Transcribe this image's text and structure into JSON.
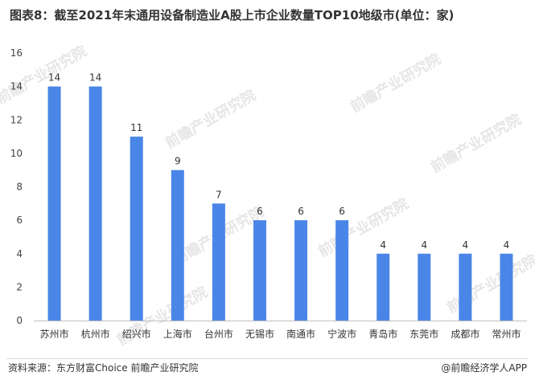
{
  "title": "图表8：截至2021年末通用设备制造业A股上市企业数量TOP10地级市(单位：家)",
  "footer": {
    "source": "资料来源：东方财富Choice 前瞻产业研究院",
    "brand": "@前瞻经济学人APP"
  },
  "watermark": {
    "text": "前瞻产业研究院"
  },
  "colors": {
    "bar": "#4a86e8",
    "axis": "#bfbfbf"
  },
  "chart_data": {
    "type": "bar",
    "categories": [
      "苏州市",
      "杭州市",
      "绍兴市",
      "上海市",
      "台州市",
      "无锡市",
      "南通市",
      "宁波市",
      "青岛市",
      "东莞市",
      "成都市",
      "常州市"
    ],
    "values": [
      14,
      14,
      11,
      9,
      7,
      6,
      6,
      6,
      4,
      4,
      4,
      4
    ],
    "yticks": [
      0,
      2,
      4,
      6,
      8,
      10,
      12,
      14,
      16
    ],
    "ylim": [
      0,
      16
    ],
    "grid": false,
    "legend": "none"
  }
}
